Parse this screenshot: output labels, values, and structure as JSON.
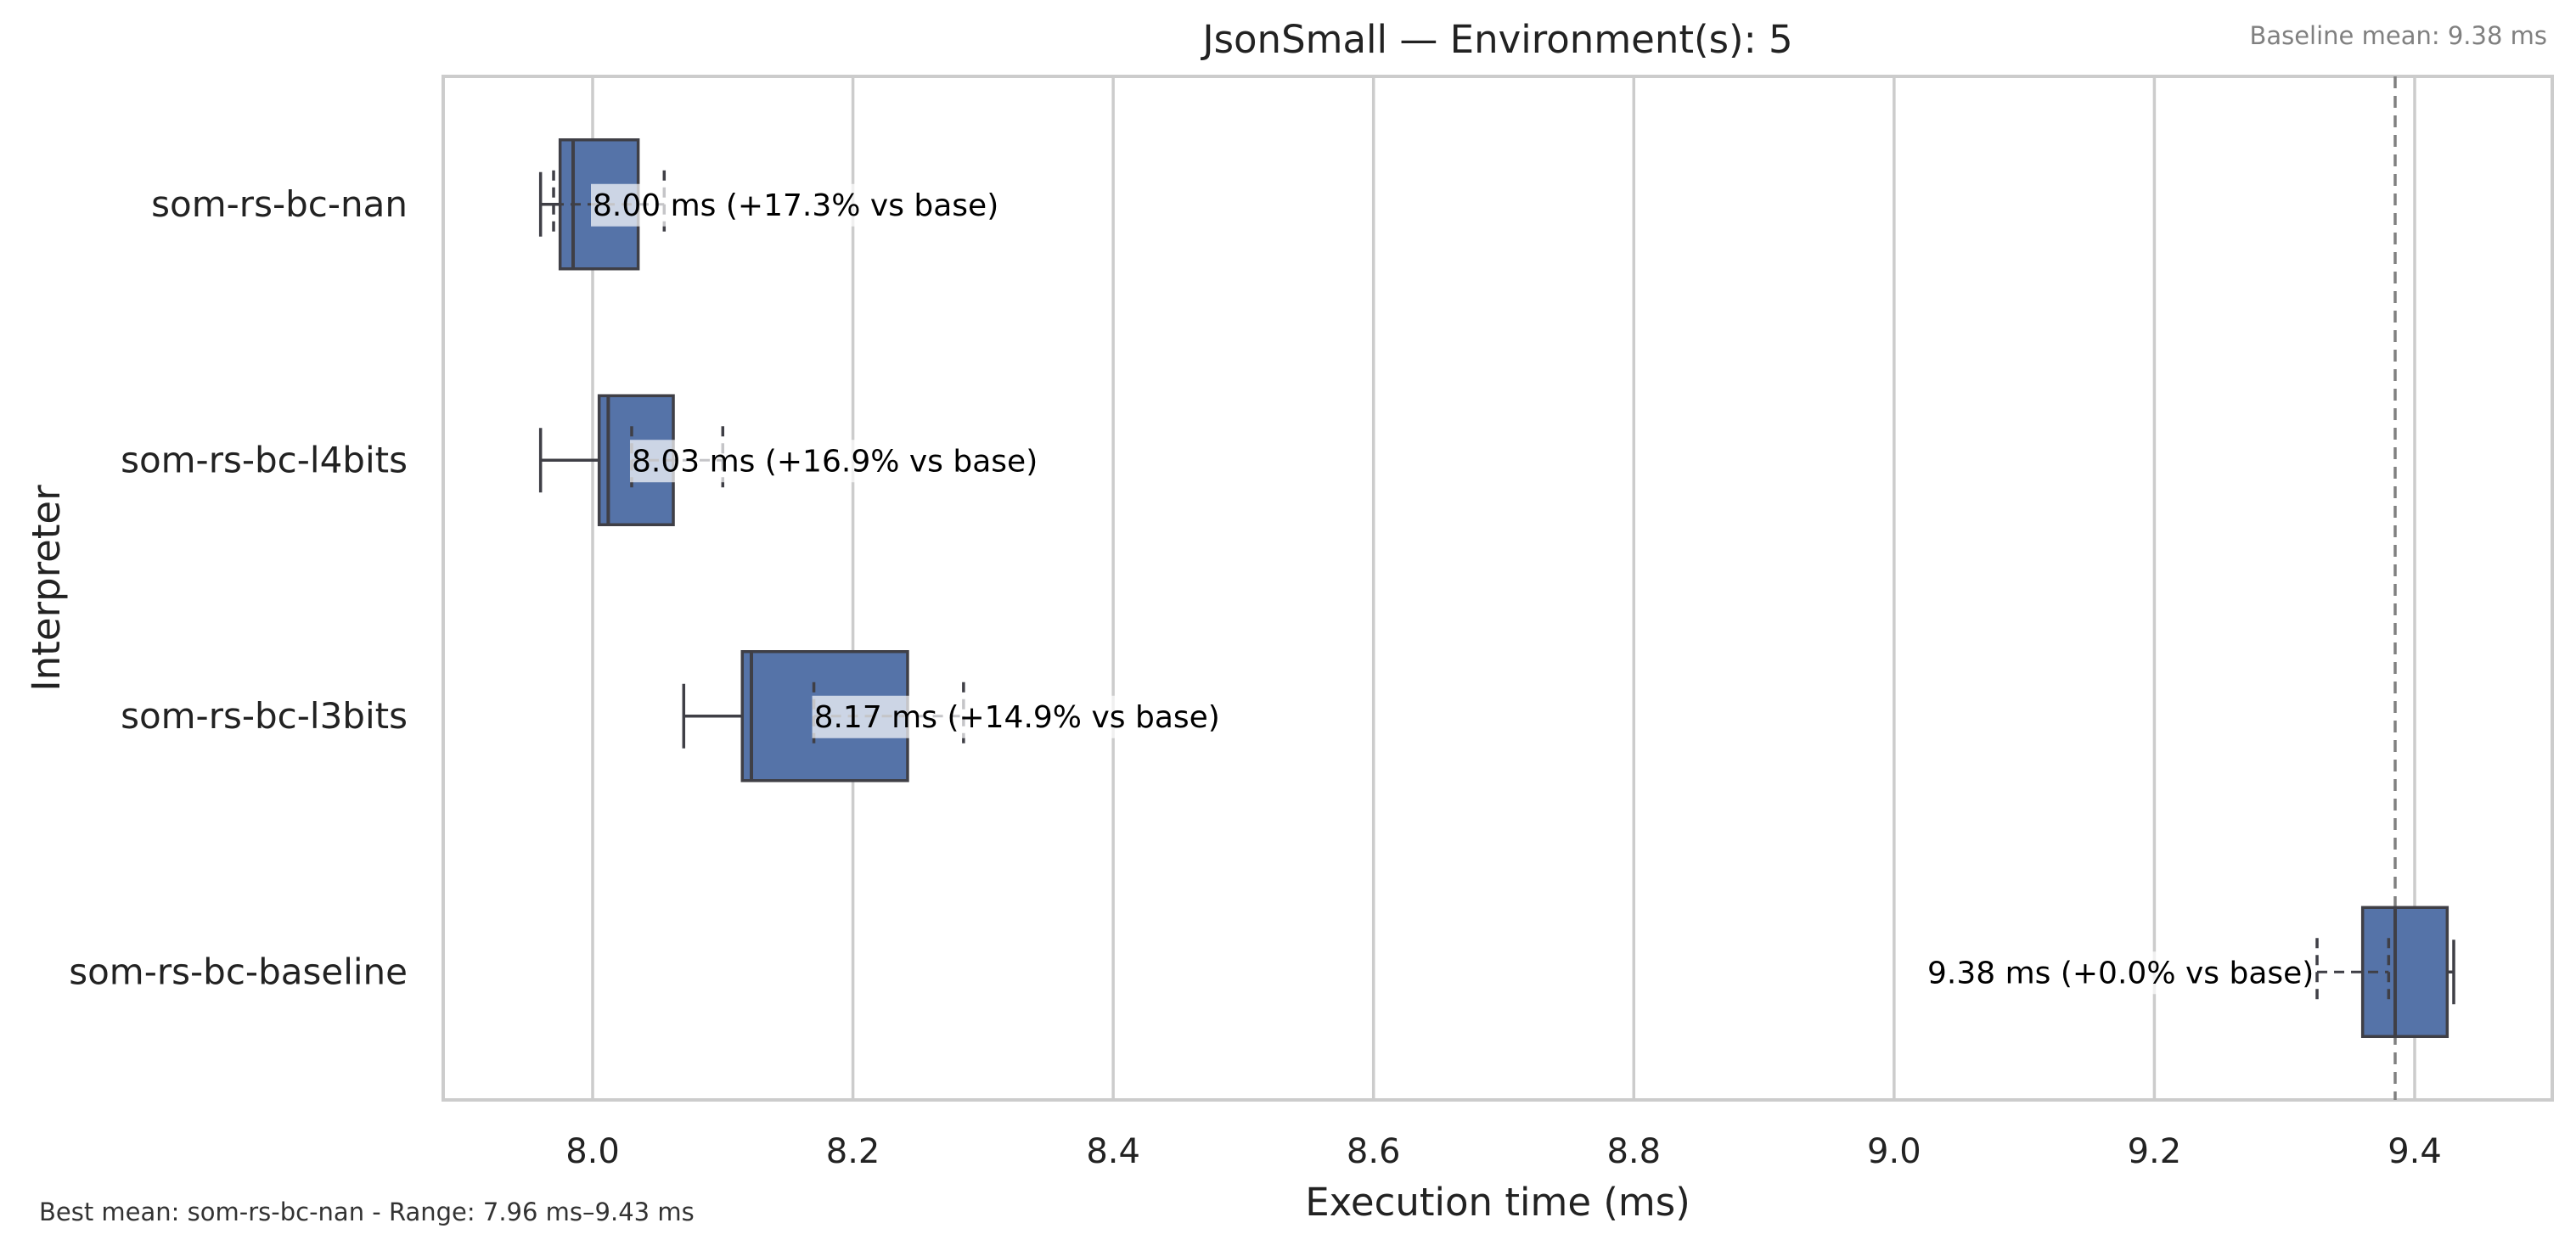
{
  "chart_data": {
    "type": "boxplot",
    "orientation": "horizontal",
    "title": "JsonSmall — Environment(s): 5",
    "xlabel": "Execution time (ms)",
    "ylabel": "Interpreter",
    "xlim": [
      7.89,
      9.51
    ],
    "x_ticks": [
      8.0,
      8.2,
      8.4,
      8.6,
      8.8,
      9.0,
      9.2,
      9.4
    ],
    "x_tick_labels": [
      "8.0",
      "8.2",
      "8.4",
      "8.6",
      "8.8",
      "9.0",
      "9.2",
      "9.4"
    ],
    "grid": "vertical",
    "box_color": "#5573a8",
    "categories": [
      "som-rs-bc-nan",
      "som-rs-bc-l4bits",
      "som-rs-bc-l3bits",
      "som-rs-bc-baseline"
    ],
    "boxes": [
      {
        "label": "som-rs-bc-nan",
        "whisker_low": 7.96,
        "q1": 7.975,
        "median": 7.985,
        "q3": 8.035,
        "whisker_high": 8.035,
        "mean": 8.0,
        "mean_whisker": [
          7.97,
          8.055
        ],
        "annotation": "8.00 ms  (+17.3% vs base)"
      },
      {
        "label": "som-rs-bc-l4bits",
        "whisker_low": 7.96,
        "q1": 8.005,
        "median": 8.012,
        "q3": 8.062,
        "whisker_high": 8.062,
        "mean": 8.03,
        "mean_whisker": [
          8.03,
          8.1
        ],
        "annotation": "8.03 ms  (+16.9% vs base)"
      },
      {
        "label": "som-rs-bc-l3bits",
        "whisker_low": 8.07,
        "q1": 8.115,
        "median": 8.122,
        "q3": 8.242,
        "whisker_high": 8.242,
        "mean": 8.17,
        "mean_whisker": [
          8.17,
          8.285
        ],
        "annotation": "8.17 ms  (+14.9% vs base)"
      },
      {
        "label": "som-rs-bc-baseline",
        "whisker_low": 9.36,
        "q1": 9.36,
        "median": 9.385,
        "q3": 9.425,
        "whisker_high": 9.43,
        "mean": 9.38,
        "mean_whisker": [
          9.325,
          9.38
        ],
        "annotation": "9.38 ms  (+0.0% vs base)"
      }
    ],
    "baseline_mean": 9.385,
    "baseline_label": "Baseline mean: 9.38 ms",
    "footer": "Best mean: som-rs-bc-nan - Range: 7.96 ms–9.43 ms"
  }
}
